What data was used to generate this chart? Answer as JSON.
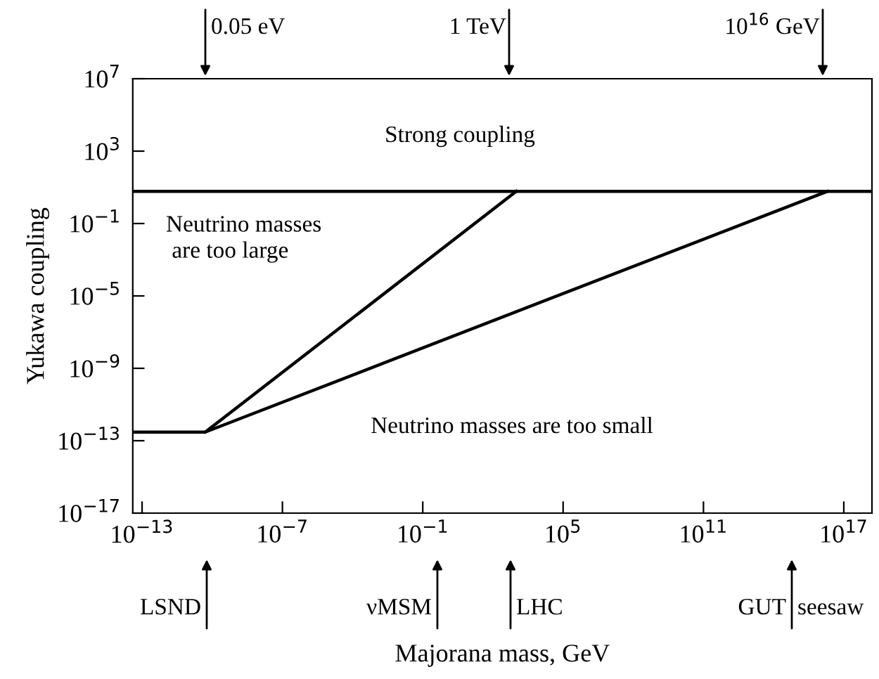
{
  "chart_data": {
    "type": "line",
    "xlabel": "Majorana mass, GeV",
    "ylabel": "Yukawa coupling",
    "log": "xy",
    "xlim": [
      4e-14,
      1.6e+18
    ],
    "ylim": [
      1e-17,
      10000000.0
    ],
    "xticks": [
      {
        "value": 1e-13,
        "label": "10$^{−13}$"
      },
      {
        "value": 1e-07,
        "label": "10$^{−7}$"
      },
      {
        "value": 0.1,
        "label": "10$^{−1}$"
      },
      {
        "value": 100000.0,
        "label": "10$^{5}$"
      },
      {
        "value": 100000000000.0,
        "label": "10$^{11}$"
      },
      {
        "value": 1e+17,
        "label": "10$^{17}$"
      }
    ],
    "yticks": [
      {
        "value": 1e-17,
        "label": "10$^{−17}$"
      },
      {
        "value": 1e-13,
        "label": "10$^{−13}$"
      },
      {
        "value": 1e-09,
        "label": "10$^{−9}$"
      },
      {
        "value": 1e-05,
        "label": "10$^{−5}$"
      },
      {
        "value": 0.1,
        "label": "10$^{−1}$"
      },
      {
        "value": 1000.0,
        "label": "10$^{3}$"
      },
      {
        "value": 10000000.0,
        "label": "10$^{7}$"
      }
    ],
    "series": [
      {
        "color": "#000000",
        "x": [
          4e-14,
          5e-11,
          1000.0
        ],
        "values": [
          3e-13,
          3e-13,
          6
        ]
      },
      {
        "color": "#000000",
        "x": [
          5e-11,
          2e+16
        ],
        "values": [
          3e-13,
          6
        ]
      }
    ],
    "ref_lines": [
      {
        "axis": "y",
        "value": 6,
        "color": "#000000"
      }
    ],
    "grid": false,
    "legend": false,
    "marker": "none",
    "line_style": "solid",
    "annotations": [
      "0.05 eV",
      "1 TeV",
      "10$^{16}$ GeV",
      "LSND",
      "νMSM",
      "LHC",
      "GUT",
      "seesaw",
      "Strong coupling",
      "Neutrino masses\n are too large",
      "Neutrino masses are too small"
    ]
  }
}
